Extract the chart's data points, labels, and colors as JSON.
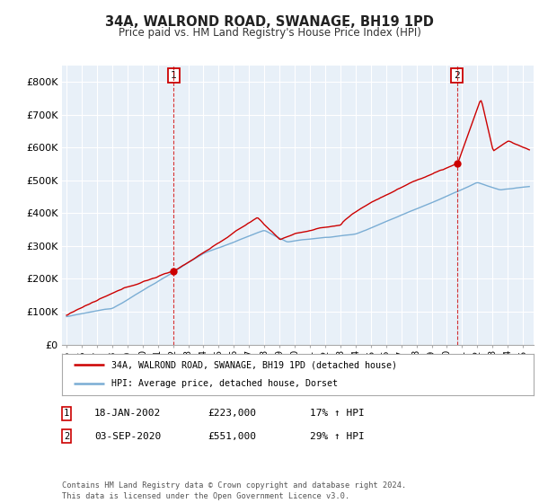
{
  "title": "34A, WALROND ROAD, SWANAGE, BH19 1PD",
  "subtitle": "Price paid vs. HM Land Registry's House Price Index (HPI)",
  "ylim": [
    0,
    850000
  ],
  "yticks": [
    0,
    100000,
    200000,
    300000,
    400000,
    500000,
    600000,
    700000,
    800000
  ],
  "ytick_labels": [
    "£0",
    "£100K",
    "£200K",
    "£300K",
    "£400K",
    "£500K",
    "£600K",
    "£700K",
    "£800K"
  ],
  "sale1_date": 2002.05,
  "sale1_price": 223000,
  "sale1_label": "1",
  "sale2_date": 2020.67,
  "sale2_price": 551000,
  "sale2_label": "2",
  "red_line_color": "#cc0000",
  "blue_line_color": "#7aadd4",
  "chart_bg_color": "#e8f0f8",
  "grid_color": "#ffffff",
  "background_color": "#ffffff",
  "legend_text1": "34A, WALROND ROAD, SWANAGE, BH19 1PD (detached house)",
  "legend_text2": "HPI: Average price, detached house, Dorset",
  "annotation1_date": "18-JAN-2002",
  "annotation1_price": "£223,000",
  "annotation1_hpi": "17% ↑ HPI",
  "annotation2_date": "03-SEP-2020",
  "annotation2_price": "£551,000",
  "annotation2_hpi": "29% ↑ HPI",
  "footer": "Contains HM Land Registry data © Crown copyright and database right 2024.\nThis data is licensed under the Open Government Licence v3.0."
}
